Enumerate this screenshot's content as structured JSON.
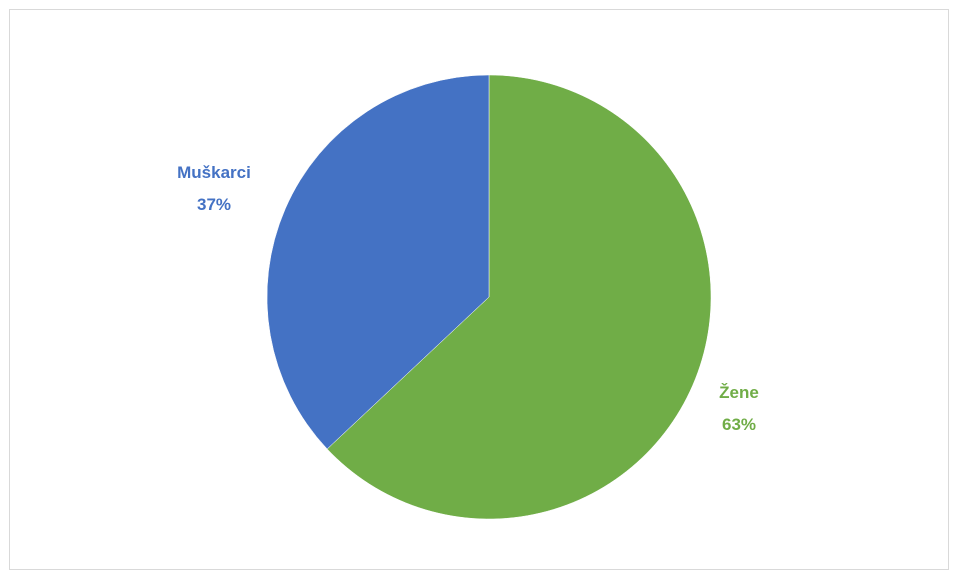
{
  "chart_data": {
    "type": "pie",
    "title": "",
    "slices": [
      {
        "name": "Žene",
        "value": 63,
        "label": "63%",
        "color": "#70ad47"
      },
      {
        "name": "Muškarci",
        "value": 37,
        "label": "37%",
        "color": "#4472c4"
      }
    ],
    "start_angle": "12 o'clock",
    "direction": "clockwise",
    "legend": "none",
    "labels": "outside"
  }
}
